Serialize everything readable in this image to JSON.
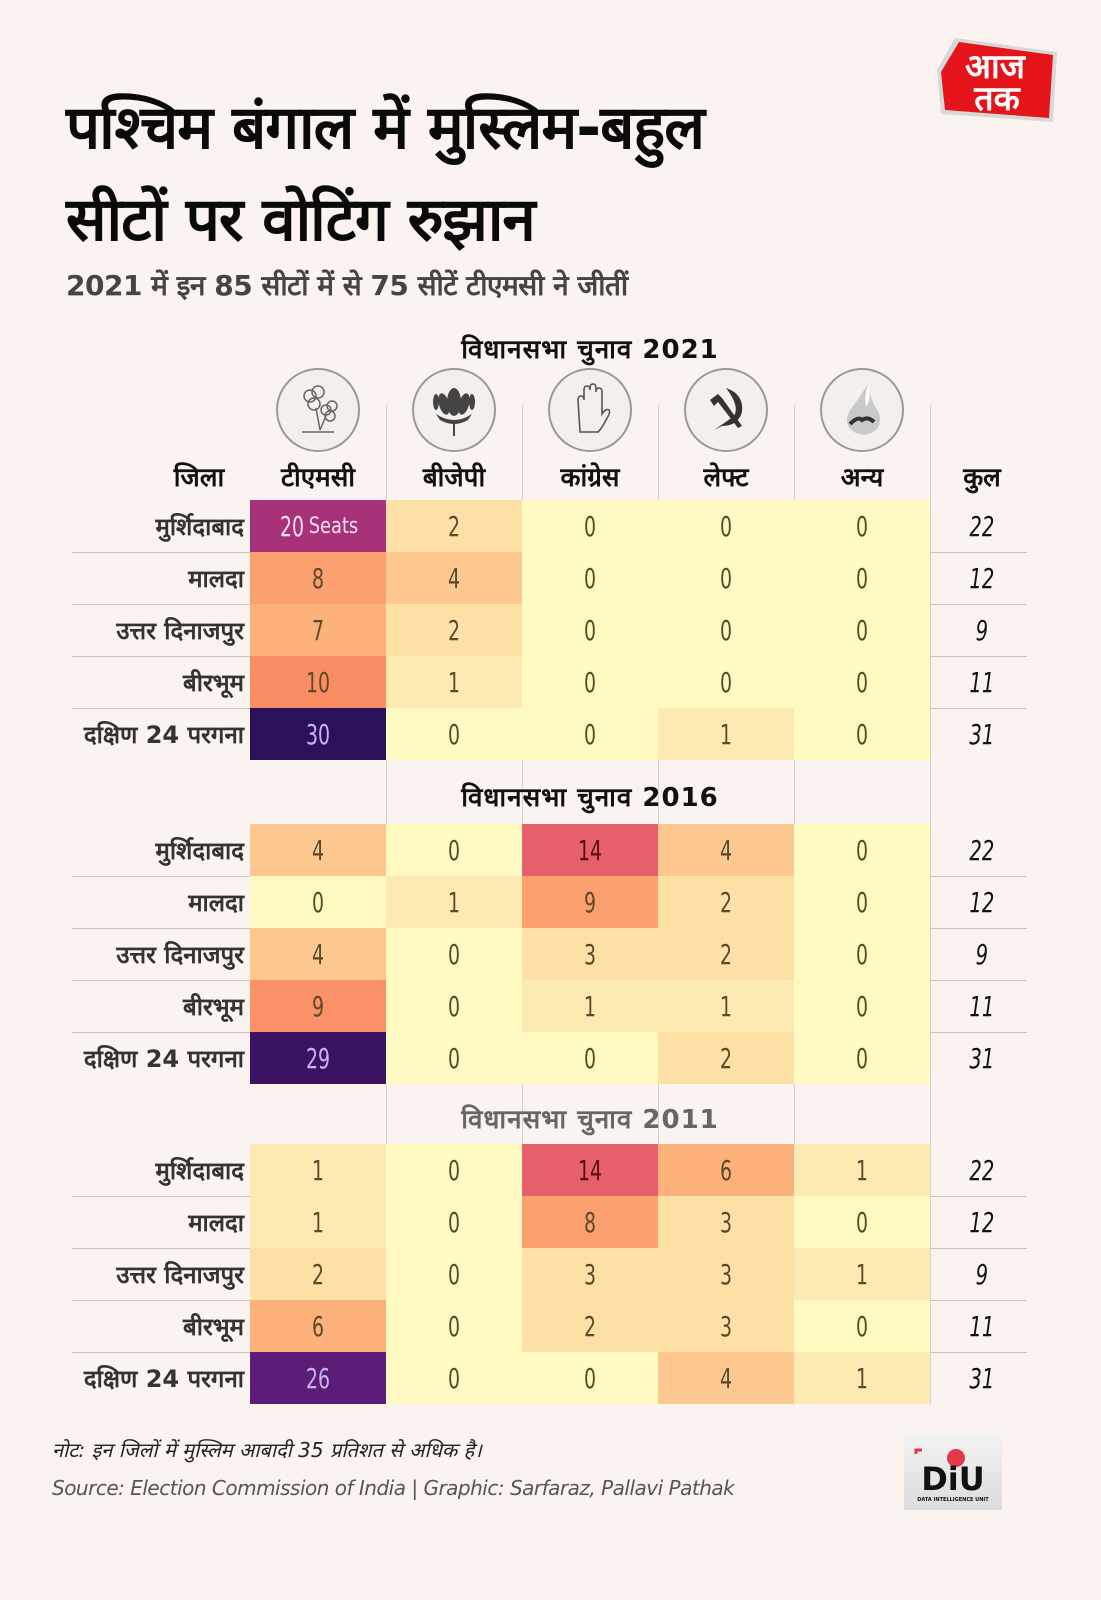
{
  "header": {
    "title_line1": "पश्चिम बंगाल में मुस्लिम-बहुल",
    "title_line2": "सीटों पर वोटिंग रुझान",
    "subtitle": "2021 में इन 85 सीटों में से 75 सीटें टीएमसी ने जीतीं",
    "brand_logo_text_top": "आज",
    "brand_logo_text_bottom": "तक"
  },
  "table": {
    "district_header": "जिला",
    "total_header": "कुल",
    "parties": [
      {
        "name": "टीएमसी",
        "icon": "tmc-flower-icon"
      },
      {
        "name": "बीजेपी",
        "icon": "bjp-lotus-icon"
      },
      {
        "name": "कांग्रेस",
        "icon": "congress-hand-icon"
      },
      {
        "name": "लेफ्ट",
        "icon": "left-hammer-sickle-icon"
      },
      {
        "name": "अन्य",
        "icon": "others-drop-icon"
      }
    ]
  },
  "chart_data": {
    "type": "heatmap",
    "title": "पश्चिम बंगाल में मुस्लिम-बहुल सीटों पर वोटिंग रुझान",
    "subtitle": "2021 में इन 85 सीटों में से 75 सीटें टीएमसी ने जीतीं",
    "columns": [
      "टीएमसी",
      "बीजेपी",
      "कांग्रेस",
      "लेफ्ट",
      "अन्य",
      "कुल"
    ],
    "rows": [
      "मुर्शिदाबाद",
      "मालदा",
      "उत्तर दिनाजपुर",
      "बीरभूम",
      "दक्षिण 24 परगना"
    ],
    "unit_label": "Seats",
    "panels": [
      {
        "title": "विधानसभा चुनाव 2021",
        "values": [
          [
            20,
            2,
            0,
            0,
            0
          ],
          [
            8,
            4,
            0,
            0,
            0
          ],
          [
            7,
            2,
            0,
            0,
            0
          ],
          [
            10,
            1,
            0,
            0,
            0
          ],
          [
            30,
            0,
            0,
            1,
            0
          ]
        ],
        "totals": [
          22,
          12,
          9,
          11,
          31
        ]
      },
      {
        "title": "विधानसभा चुनाव 2016",
        "values": [
          [
            4,
            0,
            14,
            4,
            0
          ],
          [
            0,
            1,
            9,
            2,
            0
          ],
          [
            4,
            0,
            3,
            2,
            0
          ],
          [
            9,
            0,
            1,
            1,
            0
          ],
          [
            29,
            0,
            0,
            2,
            0
          ]
        ],
        "totals": [
          22,
          12,
          9,
          11,
          31
        ]
      },
      {
        "title": "विधानसभा चुनाव 2011",
        "values": [
          [
            1,
            0,
            14,
            6,
            1
          ],
          [
            1,
            0,
            8,
            3,
            0
          ],
          [
            2,
            0,
            3,
            3,
            1
          ],
          [
            6,
            0,
            2,
            3,
            0
          ],
          [
            26,
            0,
            0,
            4,
            1
          ]
        ],
        "totals": [
          22,
          12,
          9,
          11,
          31
        ]
      }
    ],
    "color_scale": {
      "low": "#fff8c0",
      "mid": "#fca070",
      "high_red": "#e55f63",
      "high_purple": "#2a1057"
    }
  },
  "footer": {
    "note": "नोट: इन जिलों में मुस्लिम आबादी 35 प्रतिशत से अधिक है।",
    "source": "Source: Election Commission of India | Graphic:  Sarfaraz, Pallavi Pathak",
    "diu_logo_text": "DiU",
    "diu_logo_subtext": "DATA INTELLIGENCE UNIT"
  }
}
